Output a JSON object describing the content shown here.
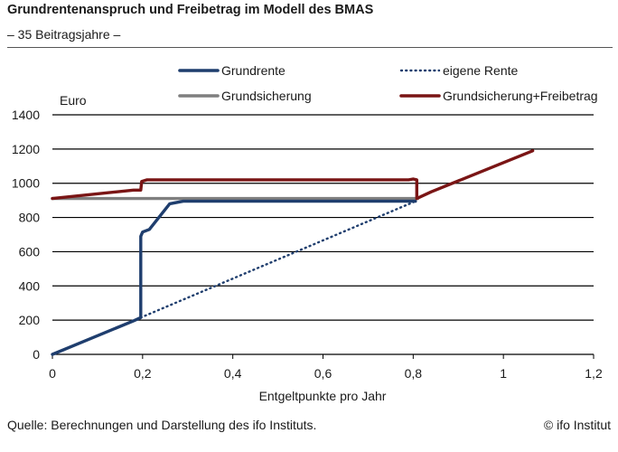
{
  "header": {
    "title": "Grundrentenanspruch und Freibetrag im Modell des BMAS",
    "subtitle": "– 35 Beitragsjahre –"
  },
  "footer": {
    "source": "Quelle: Berechnungen und Darstellung des ifo Instituts.",
    "copyright": "© ifo Institut"
  },
  "chart_data": {
    "type": "line",
    "title": "Grundrentenanspruch und Freibetrag im Modell des BMAS",
    "subtitle": "– 35 Beitragsjahre –",
    "xlabel": "Entgeltpunkte pro Jahr",
    "ylabel": "Euro",
    "xlim": [
      0,
      1.2
    ],
    "ylim": [
      0,
      1400
    ],
    "x_ticks": [
      0,
      0.2,
      0.4,
      0.6,
      0.8,
      1,
      1.2
    ],
    "x_tick_labels": [
      "0",
      "0,2",
      "0,4",
      "0,6",
      "0,8",
      "1",
      "1,2"
    ],
    "y_ticks": [
      0,
      200,
      400,
      600,
      800,
      1000,
      1200,
      1400
    ],
    "y_tick_labels": [
      "0",
      "200",
      "400",
      "600",
      "800",
      "1000",
      "1200",
      "1400"
    ],
    "grid": "horizontal",
    "legend_position": "top",
    "series": [
      {
        "name": "Grundrente",
        "color": "#1f3e6e",
        "style": "solid",
        "points": [
          [
            0,
            0
          ],
          [
            0.18,
            196
          ],
          [
            0.196,
            215
          ],
          [
            0.196,
            690
          ],
          [
            0.2,
            715
          ],
          [
            0.215,
            730
          ],
          [
            0.26,
            880
          ],
          [
            0.29,
            895
          ],
          [
            0.805,
            895
          ]
        ]
      },
      {
        "name": "eigene Rente",
        "color": "#1f3e6e",
        "style": "dotted",
        "points": [
          [
            0.196,
            215
          ],
          [
            0.805,
            895
          ]
        ]
      },
      {
        "name": "Grundsicherung",
        "color": "#7f7f7f",
        "style": "solid",
        "points": [
          [
            0,
            911
          ],
          [
            0.81,
            911
          ]
        ]
      },
      {
        "name": "Grundsicherung+Freibetrag",
        "color": "#7a1515",
        "style": "solid",
        "points": [
          [
            0,
            911
          ],
          [
            0.18,
            960
          ],
          [
            0.196,
            960
          ],
          [
            0.198,
            1010
          ],
          [
            0.21,
            1020
          ],
          [
            0.79,
            1020
          ],
          [
            0.8,
            1025
          ],
          [
            0.808,
            1020
          ],
          [
            0.808,
            911
          ],
          [
            0.84,
            950
          ],
          [
            1.065,
            1190
          ]
        ]
      }
    ]
  }
}
